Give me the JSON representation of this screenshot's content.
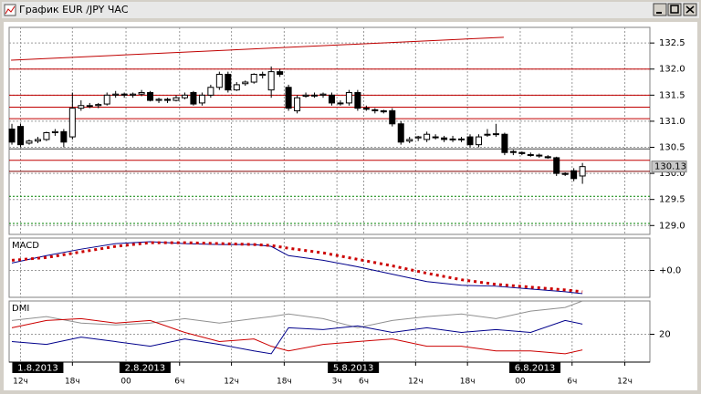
{
  "window": {
    "title": "График EUR /JPY ЧАС"
  },
  "chart_data": [
    {
      "type": "candlestick",
      "open": [
        130.85,
        130.9,
        130.58,
        130.62,
        130.65,
        130.78,
        130.8,
        130.7,
        131.25,
        131.3,
        131.3,
        131.33,
        131.5,
        131.52,
        131.5,
        131.52,
        131.55,
        131.4,
        131.42,
        131.4,
        131.45,
        131.55,
        131.35,
        131.5,
        131.65,
        131.9,
        131.6,
        131.72,
        131.75,
        131.88,
        131.6,
        131.95,
        131.65,
        131.2,
        131.48,
        131.5,
        131.5,
        131.5,
        131.35,
        131.35,
        131.55,
        131.25,
        131.22,
        131.2,
        131.2,
        130.95,
        130.62,
        130.68,
        130.65,
        130.7,
        130.68,
        130.66,
        130.65,
        130.7,
        130.55,
        130.75,
        130.76,
        130.75,
        130.42,
        130.4,
        130.36,
        130.35,
        130.32,
        130.3,
        130.0,
        130.05,
        129.95
      ],
      "high": [
        130.95,
        130.95,
        130.65,
        130.7,
        130.8,
        130.85,
        130.85,
        131.55,
        131.4,
        131.35,
        131.35,
        131.55,
        131.58,
        131.55,
        131.55,
        131.6,
        131.58,
        131.45,
        131.45,
        131.5,
        131.55,
        131.58,
        131.55,
        131.7,
        131.95,
        131.95,
        131.75,
        131.78,
        131.92,
        131.95,
        132.05,
        132.0,
        131.7,
        131.5,
        131.55,
        131.55,
        131.55,
        131.55,
        131.4,
        131.6,
        131.6,
        131.3,
        131.25,
        131.22,
        131.25,
        131.0,
        130.7,
        130.72,
        130.8,
        130.75,
        130.72,
        130.72,
        130.7,
        130.75,
        130.75,
        130.85,
        130.95,
        130.78,
        130.45,
        130.42,
        130.4,
        130.38,
        130.35,
        130.32,
        130.02,
        130.1,
        130.2
      ],
      "low": [
        130.55,
        130.5,
        130.55,
        130.58,
        130.62,
        130.72,
        130.5,
        130.65,
        131.2,
        131.25,
        131.25,
        131.3,
        131.45,
        131.45,
        131.45,
        131.48,
        131.38,
        131.35,
        131.35,
        131.38,
        131.42,
        131.3,
        131.3,
        131.45,
        131.6,
        131.55,
        131.58,
        131.68,
        131.72,
        131.82,
        131.45,
        131.85,
        131.2,
        131.15,
        131.45,
        131.45,
        131.45,
        131.3,
        131.3,
        131.3,
        131.2,
        131.2,
        131.15,
        131.15,
        130.9,
        130.55,
        130.58,
        130.62,
        130.6,
        130.65,
        130.6,
        130.6,
        130.6,
        130.5,
        130.5,
        130.7,
        130.7,
        130.35,
        130.35,
        130.35,
        130.32,
        130.3,
        130.28,
        129.95,
        129.95,
        129.85,
        129.8
      ],
      "close": [
        130.6,
        130.55,
        130.62,
        130.65,
        130.78,
        130.8,
        130.6,
        131.25,
        131.3,
        131.3,
        131.32,
        131.5,
        131.52,
        131.5,
        131.52,
        131.55,
        131.4,
        131.42,
        131.4,
        131.45,
        131.5,
        131.33,
        131.5,
        131.65,
        131.9,
        131.6,
        131.7,
        131.75,
        131.9,
        131.9,
        131.95,
        131.9,
        131.25,
        131.45,
        131.5,
        131.5,
        131.52,
        131.35,
        131.35,
        131.55,
        131.25,
        131.23,
        131.2,
        131.18,
        130.95,
        130.6,
        130.65,
        130.7,
        130.75,
        130.7,
        130.65,
        130.65,
        130.66,
        130.55,
        130.7,
        130.75,
        130.75,
        130.4,
        130.4,
        130.38,
        130.35,
        130.34,
        130.3,
        130.0,
        129.98,
        129.9,
        130.13
      ],
      "ylim": [
        128.83,
        132.8
      ],
      "yticks": [
        {
          "value": 132.5,
          "label": "132.5"
        },
        {
          "value": 132,
          "label": "132.0"
        },
        {
          "value": 131.5,
          "label": "131.5"
        },
        {
          "value": 131,
          "label": "131.0"
        },
        {
          "value": 130.5,
          "label": "130.5"
        },
        {
          "value": 130,
          "label": "130.0"
        },
        {
          "value": 129.5,
          "label": "129.5"
        },
        {
          "value": 129,
          "label": "129.0"
        }
      ],
      "xlim": [
        -0.32,
        73.8
      ],
      "xticks": [
        {
          "value": 1,
          "label": "12ч"
        },
        {
          "value": 7,
          "label": "18ч"
        },
        {
          "value": 13.2,
          "label": "00"
        },
        {
          "value": 19.4,
          "label": "6ч"
        },
        {
          "value": 25.4,
          "label": "12ч"
        },
        {
          "value": 31.5,
          "label": "18ч"
        },
        {
          "value": 37.6,
          "label": "3ч"
        },
        {
          "value": 40.7,
          "label": "6ч"
        },
        {
          "value": 46.7,
          "label": "12ч"
        },
        {
          "value": 52.7,
          "label": "18ч"
        },
        {
          "value": 58.8,
          "label": "00"
        },
        {
          "value": 64.8,
          "label": "6ч"
        },
        {
          "value": 70.9,
          "label": "12ч"
        }
      ],
      "date_ticks": [
        {
          "value": 3,
          "label": "1.8.2013"
        },
        {
          "value": 15.4,
          "label": "2.8.2013"
        },
        {
          "value": 39.5,
          "label": "5.8.2013"
        },
        {
          "value": 60.5,
          "label": "6.8.2013"
        }
      ],
      "levels": [
        {
          "value": 132,
          "color": "#c00000"
        },
        {
          "value": 131.5,
          "color": "#c00000"
        },
        {
          "value": 131.27,
          "color": "#c00000"
        },
        {
          "value": 131.05,
          "color": "#c00000"
        },
        {
          "value": 130.47,
          "color": "#404040"
        },
        {
          "value": 130.25,
          "color": "#c00000"
        },
        {
          "value": 130.04,
          "color": "#800000"
        },
        {
          "value": 129.56,
          "color": "#008000",
          "dash": true
        },
        {
          "value": 129.04,
          "color": "#008000",
          "dash": true
        }
      ],
      "trendline": {
        "x": [
          -0.1,
          56.9
        ],
        "y": [
          132.17,
          132.61
        ],
        "color": "#c00000"
      },
      "last_price": 130.13
    },
    {
      "type": "line",
      "title": "MACD",
      "x": [
        0,
        4,
        8,
        12,
        16,
        20,
        24,
        28,
        30,
        32,
        36,
        40,
        44,
        48,
        52,
        56,
        60,
        64,
        66
      ],
      "series": [
        {
          "color": "#00008b",
          "values": [
            0.08,
            0.16,
            0.23,
            0.29,
            0.31,
            0.29,
            0.28,
            0.28,
            0.26,
            0.16,
            0.11,
            0.04,
            -0.04,
            -0.12,
            -0.16,
            -0.17,
            -0.2,
            -0.23,
            -0.25
          ]
        },
        {
          "color": "#cc0000",
          "dash": true,
          "values": [
            0.11,
            0.14,
            0.2,
            0.26,
            0.3,
            0.3,
            0.29,
            0.28,
            0.27,
            0.24,
            0.19,
            0.12,
            0.05,
            -0.03,
            -0.1,
            -0.15,
            -0.18,
            -0.21,
            -0.23
          ]
        }
      ],
      "ylim": [
        -0.29,
        0.35
      ],
      "yticks": [
        {
          "value": 0,
          "label": "+0.0"
        }
      ]
    },
    {
      "type": "line",
      "title": "DMI",
      "x": [
        0,
        4,
        8,
        12,
        16,
        20,
        24,
        28,
        30,
        32,
        36,
        40,
        44,
        48,
        52,
        56,
        60,
        64,
        66
      ],
      "series": [
        {
          "color": "#909090",
          "values": [
            28.3,
            30.6,
            26.7,
            25.6,
            26.7,
            29.4,
            26.7,
            29.4,
            30.6,
            32.2,
            29.4,
            23.9,
            28.3,
            30.6,
            32.2,
            29.4,
            33.9,
            36.1,
            40
          ]
        },
        {
          "color": "#cc0000",
          "values": [
            23.9,
            28.3,
            29.4,
            26.7,
            28.3,
            21.1,
            15.6,
            17.2,
            12.8,
            10,
            13.9,
            15.6,
            17.2,
            12.8,
            12.8,
            10,
            10,
            8.3,
            10.6
          ]
        },
        {
          "color": "#00008b",
          "values": [
            15.6,
            13.9,
            18.3,
            15.6,
            12.8,
            17.2,
            13.9,
            10,
            8.3,
            23.9,
            22.8,
            25,
            21.1,
            23.9,
            21.1,
            22.8,
            21.1,
            28.3,
            26.1
          ]
        }
      ],
      "ylim": [
        3.3,
        40
      ],
      "yticks": [
        20
      ]
    }
  ]
}
